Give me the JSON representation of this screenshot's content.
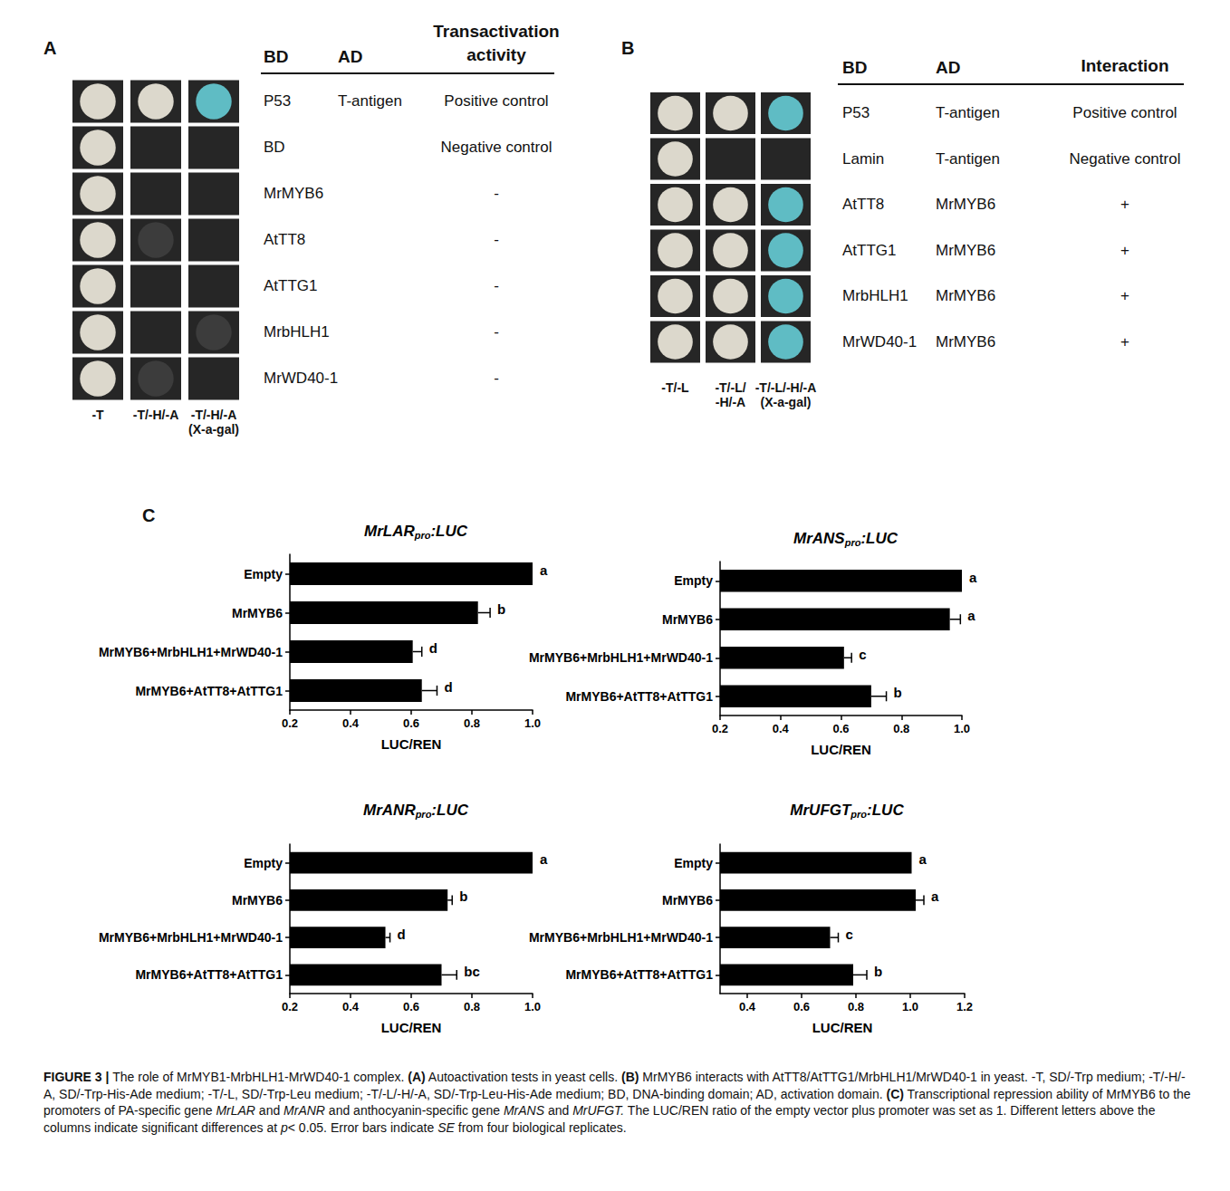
{
  "panel_a": {
    "letter": "A",
    "columns": [
      [
        "-T"
      ],
      [
        "-T/-H/-A"
      ],
      [
        "-T/-H/-A",
        "(X-a-gal)"
      ]
    ],
    "header": [
      "BD",
      "AD",
      "Transactivation activity"
    ],
    "rows": [
      {
        "bd": "P53",
        "ad": "T-antigen",
        "result": "Positive control",
        "spot_colors": [
          "#dcd8cc",
          "#dcd8cc",
          "#5fbcc4"
        ]
      },
      {
        "bd": "BD",
        "ad": null,
        "result": "Negative control",
        "spot_colors": [
          "#dcd8cc",
          null,
          null
        ]
      },
      {
        "bd": "MrMYB6",
        "ad": null,
        "result": "-",
        "spot_colors": [
          "#dcd8cc",
          null,
          null
        ]
      },
      {
        "bd": "AtTT8",
        "ad": null,
        "result": "-",
        "spot_colors": [
          "#dcd8cc",
          "#3c3c3c",
          null
        ]
      },
      {
        "bd": "AtTTG1",
        "ad": null,
        "result": "-",
        "spot_colors": [
          "#dcd8cc",
          null,
          null
        ]
      },
      {
        "bd": "MrbHLH1",
        "ad": null,
        "result": "-",
        "spot_colors": [
          "#dcd8cc",
          null,
          "#3c3c3c"
        ]
      },
      {
        "bd": "MrWD40-1",
        "ad": null,
        "result": "-",
        "spot_colors": [
          "#dcd8cc",
          "#3c3c3c",
          null
        ]
      }
    ]
  },
  "panel_b": {
    "letter": "B",
    "columns": [
      [
        "-T/-L"
      ],
      [
        "-T/-L/",
        "-H/-A"
      ],
      [
        "-T/-L/-H/-A",
        "(X-a-gal)"
      ]
    ],
    "header": [
      "BD",
      "AD",
      "Interaction"
    ],
    "rows": [
      {
        "bd": "P53",
        "ad": "T-antigen",
        "result": "Positive control",
        "spot_colors": [
          "#dcd8cc",
          "#dcd8cc",
          "#5fbcc4"
        ]
      },
      {
        "bd": "Lamin",
        "ad": "T-antigen",
        "result": "Negative control",
        "spot_colors": [
          "#dcd8cc",
          null,
          null
        ]
      },
      {
        "bd": "AtTT8",
        "ad": "MrMYB6",
        "result": "+",
        "spot_colors": [
          "#dcd8cc",
          "#dcd8cc",
          "#5fbcc4"
        ]
      },
      {
        "bd": "AtTTG1",
        "ad": "MrMYB6",
        "result": "+",
        "spot_colors": [
          "#dcd8cc",
          "#dcd8cc",
          "#5fbcc4"
        ]
      },
      {
        "bd": "MrbHLH1",
        "ad": "MrMYB6",
        "result": "+",
        "spot_colors": [
          "#dcd8cc",
          "#dcd8cc",
          "#5fbcc4"
        ]
      },
      {
        "bd": "MrWD40-1",
        "ad": "MrMYB6",
        "result": "+",
        "spot_colors": [
          "#dcd8cc",
          "#dcd8cc",
          "#5fbcc4"
        ]
      }
    ]
  },
  "panel_c": {
    "letter": "C"
  },
  "chart_data": [
    {
      "type": "bar",
      "orientation": "horizontal",
      "title": "MrLARpro:LUC",
      "categories": [
        "Empty",
        "MrMYB6",
        "MrMYB6+MrbHLH1+MrWD40-1",
        "MrMYB6+AtTT8+AtTTG1"
      ],
      "values": [
        1.0,
        0.82,
        0.605,
        0.635
      ],
      "errors": [
        0,
        0.04,
        0.03,
        0.05
      ],
      "letters": [
        "a",
        "b",
        "d",
        "d"
      ],
      "color": "#000000",
      "xlabel": "LUC/REN",
      "xlim": [
        0.2,
        1.0
      ],
      "xticks": [
        0.2,
        0.4,
        0.6,
        0.8,
        {
          "value": 1,
          "label": "1.0"
        }
      ],
      "grid": false
    },
    {
      "type": "bar",
      "orientation": "horizontal",
      "title": "MrANSpro:LUC",
      "categories": [
        "Empty",
        "MrMYB6",
        "MrMYB6+MrbHLH1+MrWD40-1",
        "MrMYB6+AtTT8+AtTTG1"
      ],
      "values": [
        1.0,
        0.96,
        0.61,
        0.7
      ],
      "errors": [
        0,
        0.035,
        0.025,
        0.05
      ],
      "letters": [
        "a",
        "a",
        "c",
        "b"
      ],
      "color": "#000000",
      "xlabel": "LUC/REN",
      "xlim": [
        0.2,
        1.0
      ],
      "xticks": [
        0.2,
        0.4,
        0.6,
        0.8,
        {
          "value": 1,
          "label": "1.0"
        }
      ],
      "grid": false
    },
    {
      "type": "bar",
      "orientation": "horizontal",
      "title": "MrANRpro:LUC",
      "categories": [
        "Empty",
        "MrMYB6",
        "MrMYB6+MrbHLH1+MrWD40-1",
        "MrMYB6+AtTT8+AtTTG1"
      ],
      "values": [
        1.0,
        0.72,
        0.515,
        0.7
      ],
      "errors": [
        0,
        0.015,
        0.015,
        0.05
      ],
      "letters": [
        "a",
        "b",
        "d",
        "bc"
      ],
      "color": "#000000",
      "xlabel": "LUC/REN",
      "xlim": [
        0.2,
        1.0
      ],
      "xticks": [
        0.2,
        0.4,
        0.6,
        0.8,
        {
          "value": 1,
          "label": "1.0"
        }
      ],
      "grid": false
    },
    {
      "type": "bar",
      "orientation": "horizontal",
      "title": "MrUFGTpro:LUC",
      "categories": [
        "Empty",
        "MrMYB6",
        "MrMYB6+MrbHLH1+MrWD40-1",
        "MrMYB6+AtTT8+AtTTG1"
      ],
      "values": [
        1.005,
        1.02,
        0.705,
        0.79
      ],
      "errors": [
        0,
        0.03,
        0.03,
        0.05
      ],
      "letters": [
        "a",
        "a",
        "c",
        "b"
      ],
      "color": "#000000",
      "xlabel": "LUC/REN",
      "xlim": [
        0.3,
        1.2
      ],
      "xticks": [
        0.4,
        0.6,
        0.8,
        {
          "value": 1,
          "label": "1.0"
        },
        1.2
      ],
      "grid": false
    }
  ],
  "caption": [
    {
      "text": "FIGURE 3 | ",
      "bold": true
    },
    {
      "text": "The role of MrMYB1-MrbHLH1-MrWD40-1 complex. "
    },
    {
      "text": "(A)",
      "bold": true
    },
    {
      "text": " Autoactivation tests in yeast cells. "
    },
    {
      "text": "(B)",
      "bold": true
    },
    {
      "text": " MrMYB6 interacts with AtTT8/AtTTG1/MrbHLH1/MrWD40-1 in yeast. -T, SD/-Trp medium; -T/-H/-A, SD/-Trp-His-Ade medium; -T/-L, SD/-Trp-Leu medium; -T/-L/-H/-A, SD/-Trp-Leu-His-Ade medium; BD, DNA-binding domain; AD, activation domain. "
    },
    {
      "text": "(C)",
      "bold": true
    },
    {
      "text": " Transcriptional repression ability of MrMYB6 to the promoters of PA-specific gene "
    },
    {
      "text": "MrLAR",
      "italic": true
    },
    {
      "text": " and "
    },
    {
      "text": "MrANR",
      "italic": true
    },
    {
      "text": " and anthocyanin-specific gene "
    },
    {
      "text": "MrANS",
      "italic": true
    },
    {
      "text": " and "
    },
    {
      "text": "MrUFGT.",
      "italic": true
    },
    {
      "text": " The LUC/REN ratio of the empty vector plus promoter was set as 1. Different letters above the columns indicate significant differences at "
    },
    {
      "text": "p",
      "italic": true
    },
    {
      "text": "< 0.05. Error bars indicate "
    },
    {
      "text": "SE",
      "italic": true
    },
    {
      "text": " from four biological replicates."
    }
  ]
}
